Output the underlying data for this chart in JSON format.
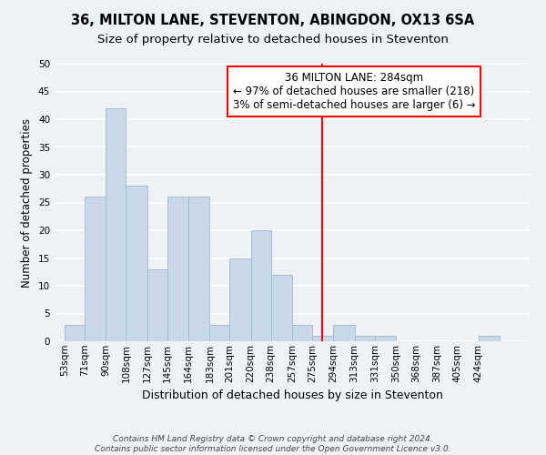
{
  "title": "36, MILTON LANE, STEVENTON, ABINGDON, OX13 6SA",
  "subtitle": "Size of property relative to detached houses in Steventon",
  "xlabel": "Distribution of detached houses by size in Steventon",
  "ylabel": "Number of detached properties",
  "bin_labels": [
    "53sqm",
    "71sqm",
    "90sqm",
    "108sqm",
    "127sqm",
    "145sqm",
    "164sqm",
    "183sqm",
    "201sqm",
    "220sqm",
    "238sqm",
    "257sqm",
    "275sqm",
    "294sqm",
    "313sqm",
    "331sqm",
    "350sqm",
    "368sqm",
    "387sqm",
    "405sqm",
    "424sqm"
  ],
  "bar_heights": [
    3,
    26,
    42,
    28,
    13,
    26,
    26,
    3,
    15,
    20,
    12,
    3,
    1,
    3,
    1,
    1,
    0,
    0,
    0,
    0,
    1
  ],
  "bar_color": "#c8d8e8",
  "bar_edge_color": "#a0b8cc",
  "vline_x": 284,
  "bin_edges": [
    53,
    71,
    90,
    108,
    127,
    145,
    164,
    183,
    201,
    220,
    238,
    257,
    275,
    294,
    313,
    331,
    350,
    368,
    387,
    405,
    424,
    443
  ],
  "ylim": [
    0,
    50
  ],
  "yticks": [
    0,
    5,
    10,
    15,
    20,
    25,
    30,
    35,
    40,
    45,
    50
  ],
  "annotation_title": "36 MILTON LANE: 284sqm",
  "annotation_line1": "← 97% of detached houses are smaller (218)",
  "annotation_line2": "3% of semi-detached houses are larger (6) →",
  "footer_line1": "Contains HM Land Registry data © Crown copyright and database right 2024.",
  "footer_line2": "Contains public sector information licensed under the Open Government Licence v3.0.",
  "background_color": "#eef2f7",
  "grid_color": "#ffffff",
  "title_fontsize": 10.5,
  "subtitle_fontsize": 9.5,
  "xlabel_fontsize": 9,
  "ylabel_fontsize": 8.5,
  "tick_fontsize": 7.5,
  "annotation_fontsize": 8.5,
  "footer_fontsize": 6.5
}
